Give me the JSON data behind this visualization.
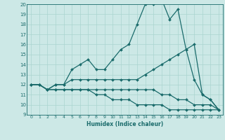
{
  "xlabel": "Humidex (Indice chaleur)",
  "xlim": [
    -0.5,
    23.5
  ],
  "ylim": [
    9,
    20
  ],
  "bg_color": "#cce8e6",
  "line_color": "#1a6b6b",
  "grid_color": "#aad4d0",
  "series": [
    [
      12,
      12,
      11.5,
      12,
      12,
      13.5,
      14,
      14.5,
      13.5,
      13.5,
      14.5,
      15.5,
      16,
      18,
      20,
      20,
      20.5,
      18.5,
      19.5,
      15.5,
      12.5,
      11,
      10.5,
      9.5
    ],
    [
      12,
      12,
      11.5,
      12,
      12,
      12.5,
      12.5,
      12.5,
      12.5,
      12.5,
      12.5,
      12.5,
      12.5,
      12.5,
      13,
      13.5,
      14,
      14.5,
      15,
      15.5,
      16,
      11,
      10.5,
      9.5
    ],
    [
      12,
      12,
      11.5,
      11.5,
      11.5,
      11.5,
      11.5,
      11.5,
      11.5,
      11.5,
      11.5,
      11.5,
      11.5,
      11.5,
      11.5,
      11.5,
      11,
      11,
      10.5,
      10.5,
      10,
      10,
      10,
      9.5
    ],
    [
      12,
      12,
      11.5,
      11.5,
      11.5,
      11.5,
      11.5,
      11.5,
      11,
      11,
      10.5,
      10.5,
      10.5,
      10,
      10,
      10,
      10,
      9.5,
      9.5,
      9.5,
      9.5,
      9.5,
      9.5,
      9.5
    ]
  ]
}
